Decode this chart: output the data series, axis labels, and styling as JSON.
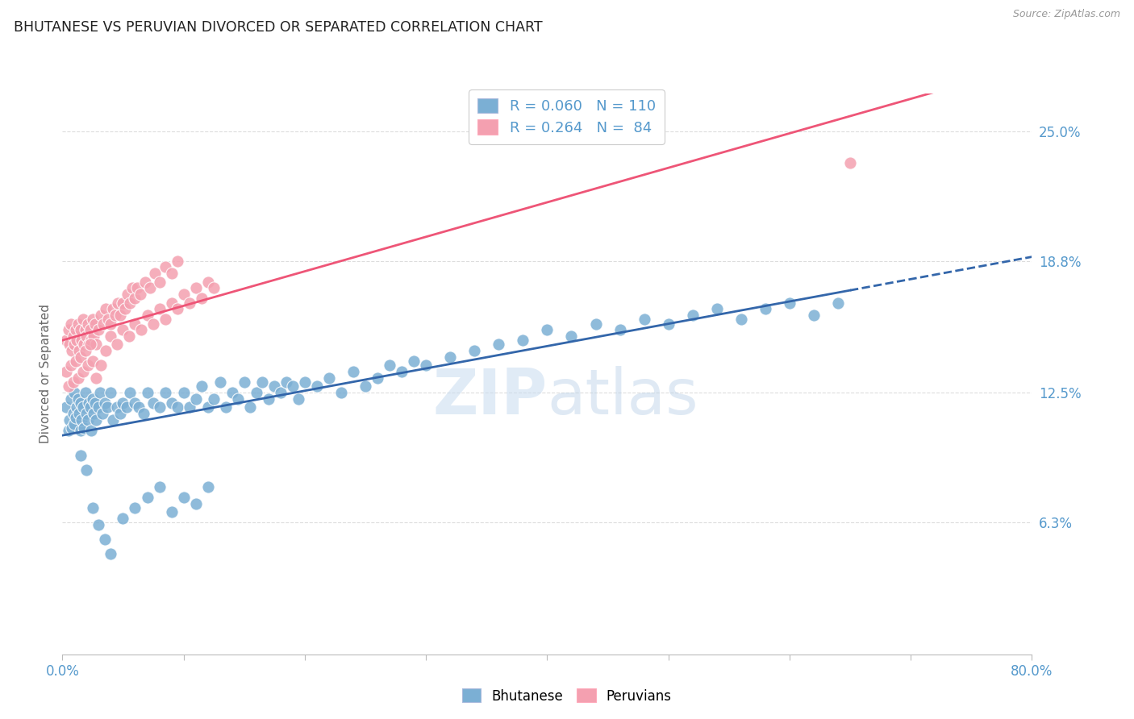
{
  "title": "BHUTANESE VS PERUVIAN DIVORCED OR SEPARATED CORRELATION CHART",
  "source": "Source: ZipAtlas.com",
  "ylabel": "Divorced or Separated",
  "yticks": [
    "25.0%",
    "18.8%",
    "12.5%",
    "6.3%"
  ],
  "ytick_vals": [
    0.25,
    0.188,
    0.125,
    0.063
  ],
  "xmin": 0.0,
  "xmax": 0.8,
  "ymin": 0.0,
  "ymax": 0.268,
  "bhutanese_R": "0.060",
  "bhutanese_N": "110",
  "peruvian_R": "0.264",
  "peruvian_N": "84",
  "legend_labels": [
    "Bhutanese",
    "Peruvians"
  ],
  "blue_color": "#7BAFD4",
  "pink_color": "#F4A0B0",
  "blue_line_color": "#3366AA",
  "pink_line_color": "#EE5577",
  "title_color": "#222222",
  "axis_label_color": "#5599CC",
  "background_color": "#FFFFFF",
  "grid_color": "#DDDDDD",
  "bhutanese_x": [
    0.003,
    0.005,
    0.006,
    0.007,
    0.008,
    0.009,
    0.01,
    0.01,
    0.011,
    0.012,
    0.013,
    0.014,
    0.015,
    0.015,
    0.016,
    0.017,
    0.018,
    0.019,
    0.02,
    0.021,
    0.022,
    0.023,
    0.024,
    0.025,
    0.026,
    0.027,
    0.028,
    0.03,
    0.031,
    0.033,
    0.035,
    0.037,
    0.04,
    0.042,
    0.045,
    0.048,
    0.05,
    0.053,
    0.056,
    0.06,
    0.063,
    0.067,
    0.07,
    0.075,
    0.08,
    0.085,
    0.09,
    0.095,
    0.1,
    0.105,
    0.11,
    0.115,
    0.12,
    0.125,
    0.13,
    0.135,
    0.14,
    0.145,
    0.15,
    0.155,
    0.16,
    0.165,
    0.17,
    0.175,
    0.18,
    0.185,
    0.19,
    0.195,
    0.2,
    0.21,
    0.22,
    0.23,
    0.24,
    0.25,
    0.26,
    0.27,
    0.28,
    0.29,
    0.3,
    0.32,
    0.34,
    0.36,
    0.38,
    0.4,
    0.42,
    0.44,
    0.46,
    0.48,
    0.5,
    0.52,
    0.54,
    0.56,
    0.58,
    0.6,
    0.62,
    0.64,
    0.015,
    0.02,
    0.025,
    0.03,
    0.1,
    0.12,
    0.035,
    0.04,
    0.05,
    0.06,
    0.07,
    0.08,
    0.09,
    0.11
  ],
  "bhutanese_y": [
    0.118,
    0.107,
    0.112,
    0.122,
    0.108,
    0.115,
    0.11,
    0.125,
    0.113,
    0.118,
    0.122,
    0.115,
    0.107,
    0.12,
    0.112,
    0.118,
    0.108,
    0.125,
    0.115,
    0.112,
    0.12,
    0.118,
    0.107,
    0.122,
    0.115,
    0.12,
    0.112,
    0.118,
    0.125,
    0.115,
    0.12,
    0.118,
    0.125,
    0.112,
    0.118,
    0.115,
    0.12,
    0.118,
    0.125,
    0.12,
    0.118,
    0.115,
    0.125,
    0.12,
    0.118,
    0.125,
    0.12,
    0.118,
    0.125,
    0.118,
    0.122,
    0.128,
    0.118,
    0.122,
    0.13,
    0.118,
    0.125,
    0.122,
    0.13,
    0.118,
    0.125,
    0.13,
    0.122,
    0.128,
    0.125,
    0.13,
    0.128,
    0.122,
    0.13,
    0.128,
    0.132,
    0.125,
    0.135,
    0.128,
    0.132,
    0.138,
    0.135,
    0.14,
    0.138,
    0.142,
    0.145,
    0.148,
    0.15,
    0.155,
    0.152,
    0.158,
    0.155,
    0.16,
    0.158,
    0.162,
    0.165,
    0.16,
    0.165,
    0.168,
    0.162,
    0.168,
    0.095,
    0.088,
    0.07,
    0.062,
    0.075,
    0.08,
    0.055,
    0.048,
    0.065,
    0.07,
    0.075,
    0.08,
    0.068,
    0.072
  ],
  "peruvian_x": [
    0.003,
    0.005,
    0.006,
    0.007,
    0.008,
    0.009,
    0.01,
    0.011,
    0.012,
    0.013,
    0.014,
    0.015,
    0.016,
    0.017,
    0.018,
    0.019,
    0.02,
    0.021,
    0.022,
    0.023,
    0.024,
    0.025,
    0.026,
    0.027,
    0.028,
    0.03,
    0.032,
    0.034,
    0.036,
    0.038,
    0.04,
    0.042,
    0.044,
    0.046,
    0.048,
    0.05,
    0.052,
    0.054,
    0.056,
    0.058,
    0.06,
    0.062,
    0.064,
    0.068,
    0.072,
    0.076,
    0.08,
    0.085,
    0.09,
    0.095,
    0.003,
    0.005,
    0.007,
    0.009,
    0.011,
    0.013,
    0.015,
    0.017,
    0.019,
    0.021,
    0.023,
    0.025,
    0.028,
    0.032,
    0.036,
    0.04,
    0.045,
    0.05,
    0.055,
    0.06,
    0.065,
    0.07,
    0.075,
    0.08,
    0.085,
    0.09,
    0.095,
    0.1,
    0.105,
    0.11,
    0.115,
    0.12,
    0.125,
    0.65
  ],
  "peruvian_y": [
    0.15,
    0.155,
    0.148,
    0.158,
    0.145,
    0.152,
    0.148,
    0.155,
    0.15,
    0.158,
    0.145,
    0.155,
    0.15,
    0.16,
    0.148,
    0.155,
    0.152,
    0.158,
    0.148,
    0.155,
    0.15,
    0.16,
    0.152,
    0.158,
    0.148,
    0.155,
    0.162,
    0.158,
    0.165,
    0.16,
    0.158,
    0.165,
    0.162,
    0.168,
    0.162,
    0.168,
    0.165,
    0.172,
    0.168,
    0.175,
    0.17,
    0.175,
    0.172,
    0.178,
    0.175,
    0.182,
    0.178,
    0.185,
    0.182,
    0.188,
    0.135,
    0.128,
    0.138,
    0.13,
    0.14,
    0.132,
    0.142,
    0.135,
    0.145,
    0.138,
    0.148,
    0.14,
    0.132,
    0.138,
    0.145,
    0.152,
    0.148,
    0.155,
    0.152,
    0.158,
    0.155,
    0.162,
    0.158,
    0.165,
    0.16,
    0.168,
    0.165,
    0.172,
    0.168,
    0.175,
    0.17,
    0.178,
    0.175,
    0.235
  ]
}
